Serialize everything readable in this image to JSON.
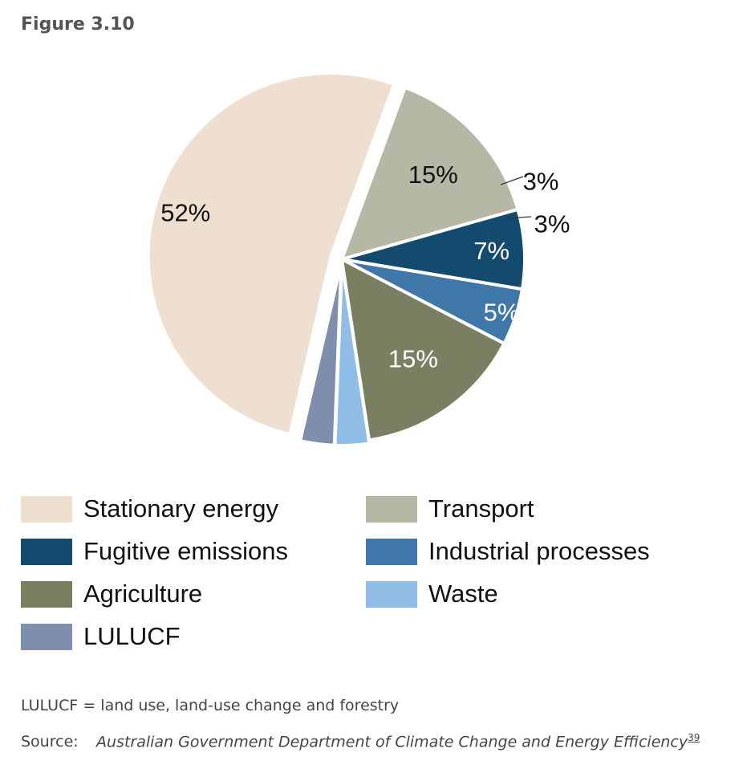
{
  "figure_label": "Figure 3.10",
  "chart_data": {
    "type": "pie",
    "title": "",
    "slices": [
      {
        "name": "Stationary energy",
        "value": 52,
        "label": "52%",
        "color": "#efdfd0",
        "label_color": "#111111"
      },
      {
        "name": "Transport",
        "value": 15,
        "label": "15%",
        "color": "#b7b7a5",
        "label_color": "#111111"
      },
      {
        "name": "Fugitive emissions",
        "value": 7,
        "label": "7%",
        "color": "#134a6e",
        "label_color": "#ffffff"
      },
      {
        "name": "Industrial processes",
        "value": 5,
        "label": "5%",
        "color": "#3f78a8",
        "label_color": "#ffffff"
      },
      {
        "name": "Agriculture",
        "value": 15,
        "label": "15%",
        "color": "#7b7f62",
        "label_color": "#ffffff"
      },
      {
        "name": "Waste",
        "value": 3,
        "label": "3%",
        "color": "#90bde6",
        "label_color": "#111111"
      },
      {
        "name": "LULUCF",
        "value": 3,
        "label": "3%",
        "color": "#7f8eac",
        "label_color": "#111111"
      }
    ],
    "legend": [
      {
        "name": "Stationary energy",
        "color": "#efdfd0"
      },
      {
        "name": "Transport",
        "color": "#b7b7a5"
      },
      {
        "name": "Fugitive emissions",
        "color": "#134a6e"
      },
      {
        "name": "Industrial processes",
        "color": "#3f78a8"
      },
      {
        "name": "Agriculture",
        "color": "#7b7f62"
      },
      {
        "name": "Waste",
        "color": "#90bde6"
      },
      {
        "name": "LULUCF",
        "color": "#7f8eac"
      }
    ],
    "legend_position": "bottom"
  },
  "note": "LULUCF = land use, land-use change and forestry",
  "source": {
    "label": "Source:",
    "text": "Australian Government Department of Climate Change and Energy Efficiency",
    "ref": "39"
  }
}
